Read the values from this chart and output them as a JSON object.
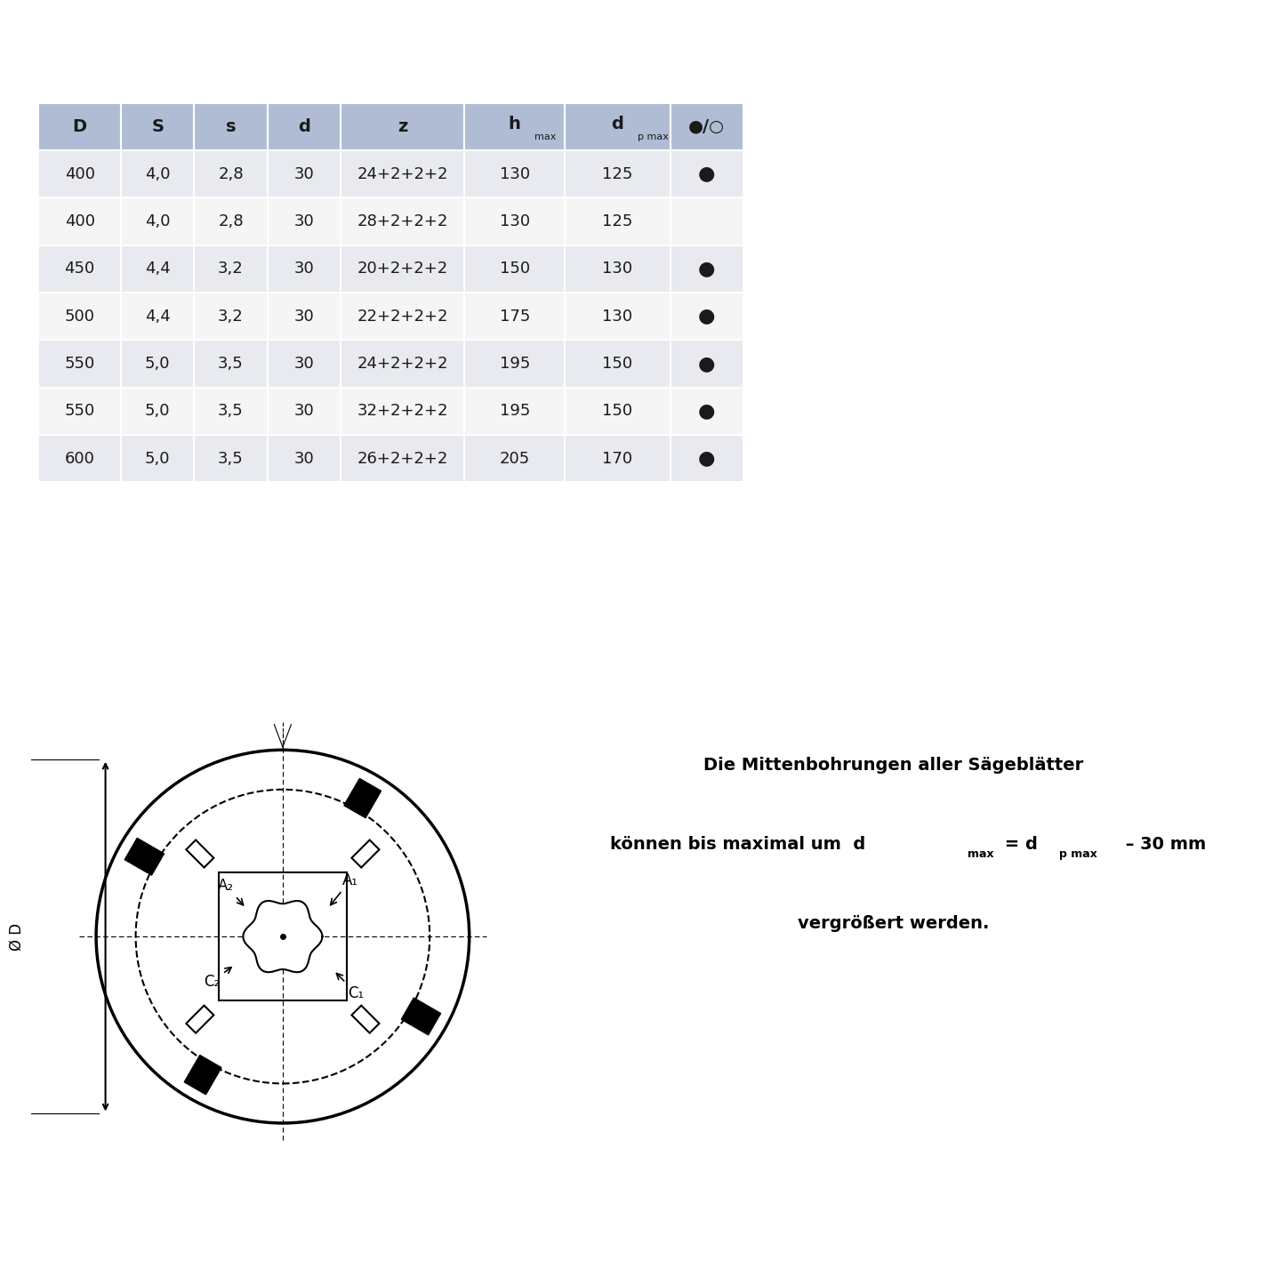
{
  "table_headers": [
    "D",
    "S",
    "s",
    "d",
    "z",
    "h max",
    "d p max",
    "●/○"
  ],
  "table_header_subs": [
    "",
    "",
    "",
    "",
    "",
    "max",
    "p max",
    ""
  ],
  "table_data": [
    [
      "400",
      "4,0",
      "2,8",
      "30",
      "24+2+2+2",
      "130",
      "125",
      "●"
    ],
    [
      "400",
      "4,0",
      "2,8",
      "30",
      "28+2+2+2",
      "130",
      "125",
      ""
    ],
    [
      "450",
      "4,4",
      "3,2",
      "30",
      "20+2+2+2",
      "150",
      "130",
      "●"
    ],
    [
      "500",
      "4,4",
      "3,2",
      "30",
      "22+2+2+2",
      "175",
      "130",
      "●"
    ],
    [
      "550",
      "5,0",
      "3,5",
      "30",
      "24+2+2+2",
      "195",
      "150",
      "●"
    ],
    [
      "550",
      "5,0",
      "3,5",
      "30",
      "32+2+2+2",
      "195",
      "150",
      "●"
    ],
    [
      "600",
      "5,0",
      "3,5",
      "30",
      "26+2+2+2",
      "205",
      "170",
      "●"
    ]
  ],
  "header_bg": "#b0bcd4",
  "row_bg_odd": "#e8eaf0",
  "row_bg_even": "#f5f5f5",
  "text_color": "#1a1a1a",
  "note_line1": "Die Mittenbohrungen aller Sägeblätter",
  "note_line2": "können bis maximal um  d",
  "note_line2b": " = d",
  "note_line2c": " – 30 mm",
  "note_line3": "vergrößert werden.",
  "background_color": "#ffffff"
}
